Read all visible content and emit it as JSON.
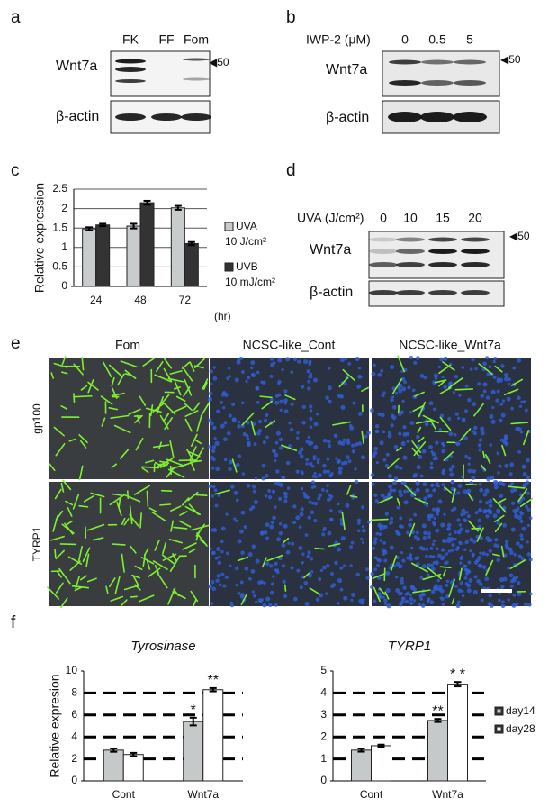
{
  "panels": [
    "a",
    "b",
    "c",
    "d",
    "e",
    "f"
  ],
  "blot_a": {
    "lanes": [
      "FK",
      "FF",
      "Fom"
    ],
    "rows": [
      "Wnt7a",
      "β-actin"
    ],
    "marker": "◀50"
  },
  "blot_b": {
    "treatment": "IWP-2 (μM)",
    "lanes": [
      "0",
      "0.5",
      "5"
    ],
    "rows": [
      "Wnt7a",
      "β-actin"
    ],
    "marker": "◀50"
  },
  "blot_d": {
    "treatment": "UVA (J/cm²)",
    "lanes": [
      "0",
      "10",
      "15",
      "20"
    ],
    "rows": [
      "Wnt7a",
      "β-actin"
    ],
    "marker": "◀50"
  },
  "images_e": {
    "columns": [
      "Fom",
      "NCSC-like_Cont",
      "NCSC-like_Wnt7a"
    ],
    "rows": [
      "gp100",
      "TYRP1"
    ]
  },
  "chart_data": [
    {
      "type": "bar",
      "ylabel": "Relative expression",
      "xlabel": "(hr)",
      "categories": [
        "24",
        "48",
        "72"
      ],
      "series": [
        {
          "name": "UVA",
          "dose": "10 J/cm²",
          "color": "#c8cccc",
          "values": [
            1.48,
            1.55,
            2.02
          ],
          "errors": [
            0.04,
            0.06,
            0.05
          ]
        },
        {
          "name": "UVB",
          "dose": "10 mJ/cm²",
          "color": "#333333",
          "values": [
            1.58,
            2.15,
            1.1
          ],
          "errors": [
            0.03,
            0.05,
            0.04
          ]
        }
      ],
      "ylim": [
        0,
        2.5
      ],
      "yticks": [
        0,
        0.5,
        1,
        1.5,
        2,
        2.5
      ],
      "grid": "solid",
      "legend": "right"
    },
    {
      "type": "bar",
      "title": "Tyrosinase",
      "ylabel": "Relative expresion",
      "categories": [
        "Cont",
        "Wnt7a"
      ],
      "series": [
        {
          "color": "#c5c9c9",
          "values": [
            2.8,
            5.4
          ],
          "errors": [
            0.15,
            0.35
          ],
          "significance": [
            null,
            "*"
          ]
        },
        {
          "color": "#ffffff",
          "values": [
            2.4,
            8.3
          ],
          "errors": [
            0.15,
            0.15
          ],
          "significance": [
            null,
            "**"
          ]
        }
      ],
      "ylim": [
        0,
        10
      ],
      "yticks": [
        0,
        2,
        4,
        6,
        8,
        10
      ],
      "grid": "dashed"
    },
    {
      "type": "bar",
      "title": "TYRP1",
      "categories": [
        "Cont",
        "Wnt7a"
      ],
      "series": [
        {
          "name": "day14",
          "color": "#c5c9c9",
          "values": [
            1.4,
            2.75
          ],
          "errors": [
            0.07,
            0.07
          ],
          "significance": [
            null,
            "**"
          ]
        },
        {
          "name": "day28",
          "color": "#ffffff",
          "values": [
            1.6,
            4.4
          ],
          "errors": [
            0.05,
            0.1
          ],
          "significance": [
            null,
            "* *"
          ]
        }
      ],
      "ylim": [
        0,
        5
      ],
      "yticks": [
        0,
        1,
        2,
        3,
        4,
        5
      ],
      "grid": "dashed",
      "legend": "right"
    }
  ]
}
